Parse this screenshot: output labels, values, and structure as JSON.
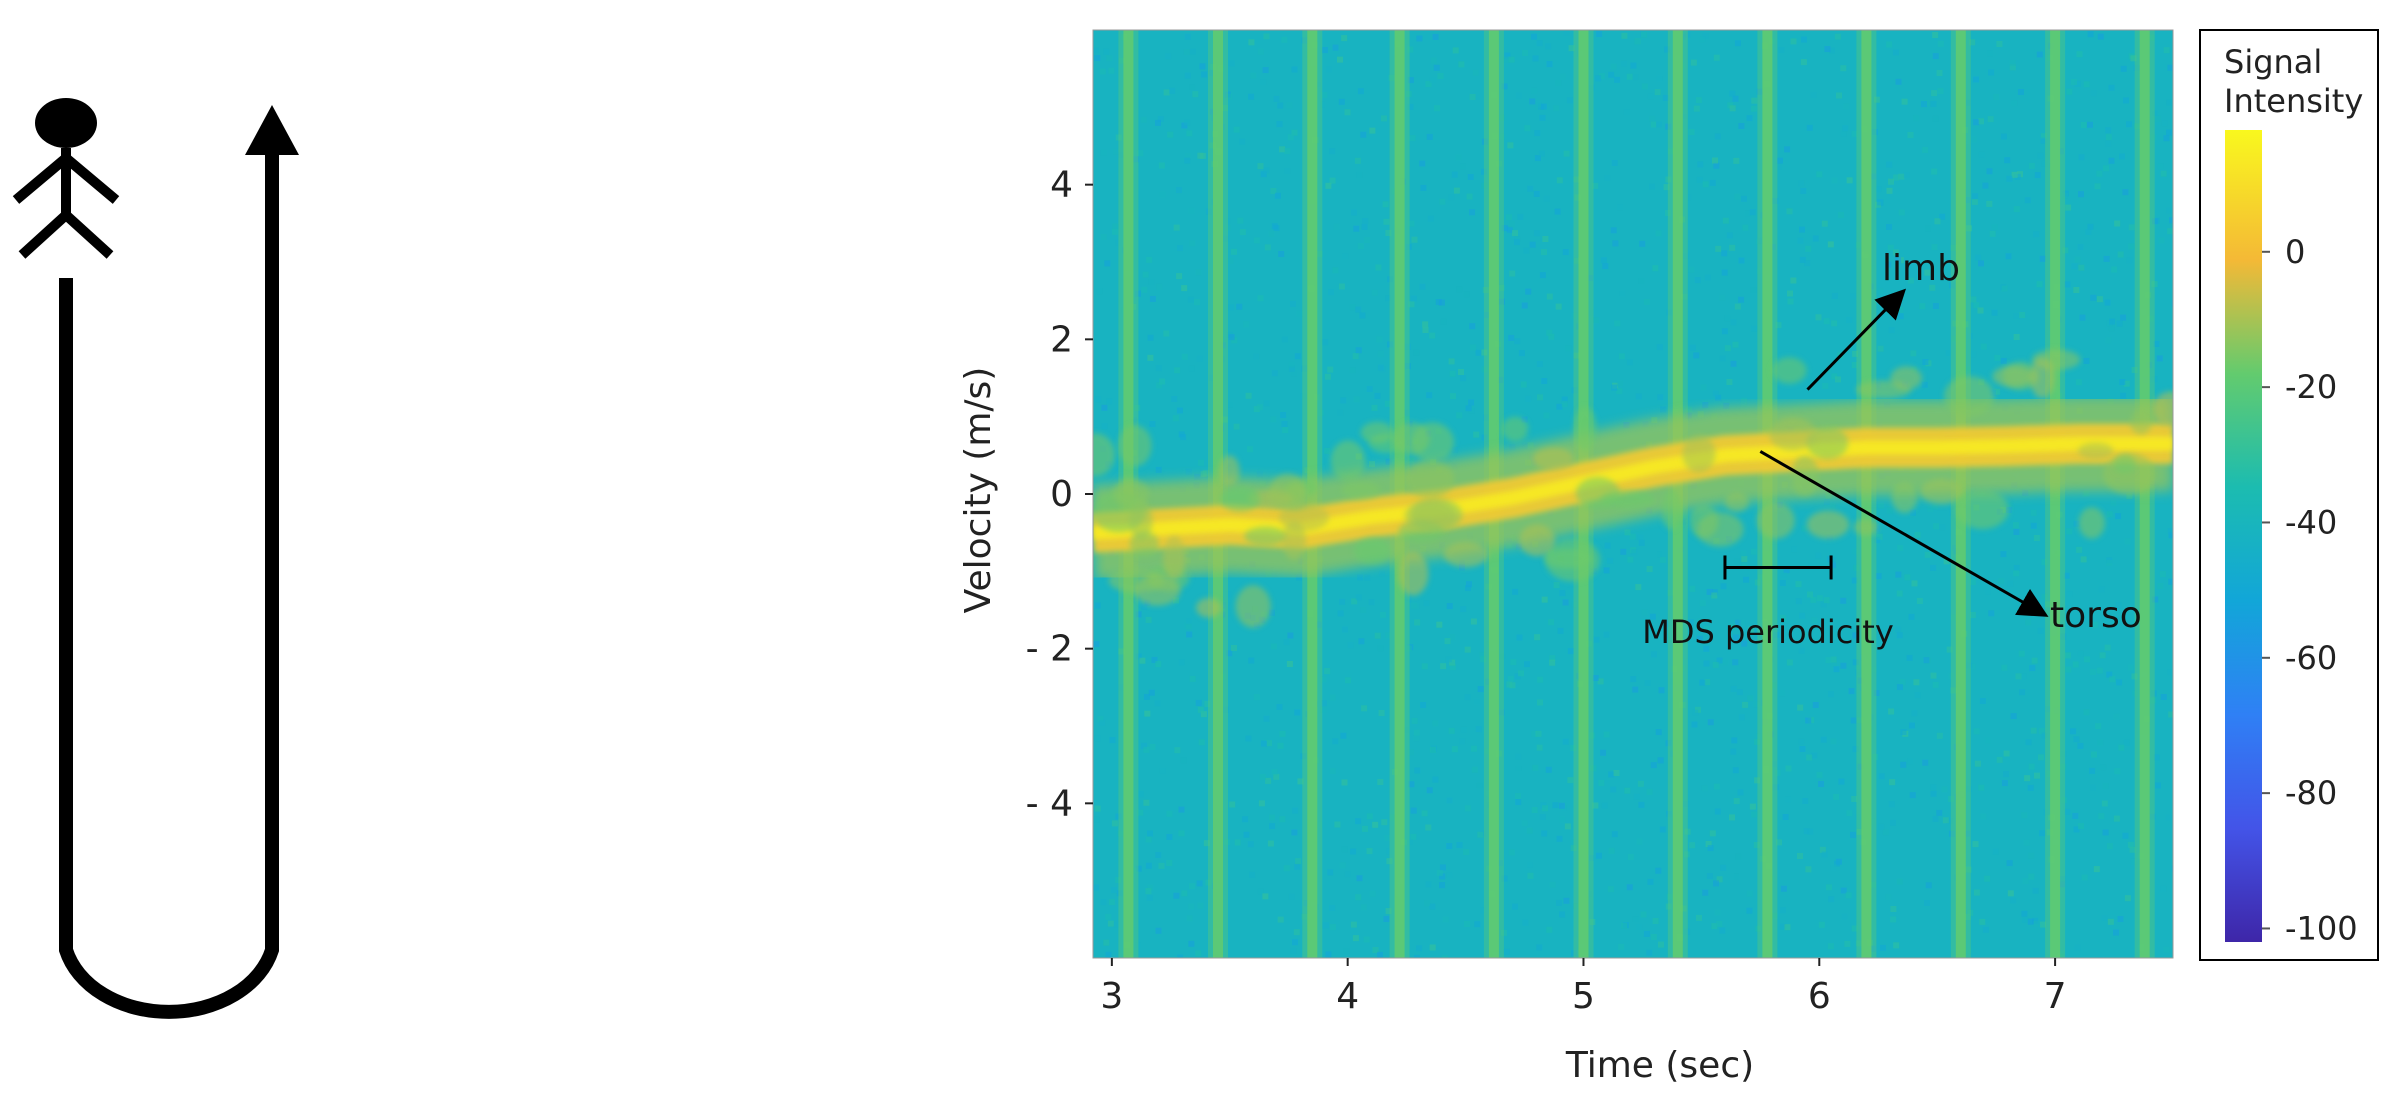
{
  "chart_data": {
    "type": "heatmap",
    "title": "",
    "xlabel": "Time (sec)",
    "ylabel": "Velocity (m/s)",
    "xlim": [
      2.92,
      7.5
    ],
    "ylim": [
      -6,
      6
    ],
    "x_ticks": [
      3,
      4,
      5,
      6,
      7
    ],
    "y_ticks": [
      4,
      2,
      0,
      -2,
      -4
    ],
    "x_tick_labels": [
      "3",
      "4",
      "5",
      "6",
      "7"
    ],
    "y_tick_labels": [
      "4",
      "2",
      "0",
      "- 2",
      "- 4"
    ],
    "colorbar": {
      "title_line1": "Signal",
      "title_line2": "Intensity",
      "range": [
        -102,
        18
      ],
      "ticks": [
        0,
        -20,
        -40,
        -60,
        -80,
        -100
      ],
      "tick_labels": [
        "0",
        "-20",
        "-40",
        "-60",
        "-80",
        "-100"
      ],
      "colormap": "parula"
    },
    "background_intensity": -42,
    "stripe_times": [
      3.07,
      3.45,
      3.85,
      4.22,
      4.62,
      5.0,
      5.4,
      5.78,
      6.2,
      6.6,
      7.0,
      7.38
    ],
    "torso_trace": {
      "x": [
        2.92,
        3.2,
        3.5,
        3.8,
        4.1,
        4.4,
        4.7,
        5.0,
        5.3,
        5.6,
        5.9,
        6.2,
        6.5,
        6.8,
        7.1,
        7.5
      ],
      "y": [
        -0.5,
        -0.45,
        -0.4,
        -0.45,
        -0.3,
        -0.2,
        -0.05,
        0.15,
        0.35,
        0.5,
        0.55,
        0.6,
        0.6,
        0.62,
        0.65,
        0.65
      ]
    },
    "annotations": {
      "limb": "limb",
      "torso": "torso",
      "mds": "MDS periodicity"
    },
    "mds_interval": [
      5.6,
      6.05
    ],
    "mds_velocity": -0.95,
    "limb_arrow": {
      "from": [
        5.95,
        1.35
      ],
      "to": [
        6.35,
        2.6
      ]
    },
    "torso_arrow": {
      "from": [
        5.75,
        0.55
      ],
      "to": [
        6.95,
        -1.55
      ]
    }
  },
  "diagram": {
    "path_description": "walking path"
  },
  "colors": {
    "background": "#ffffff",
    "arrow": "#000000"
  }
}
